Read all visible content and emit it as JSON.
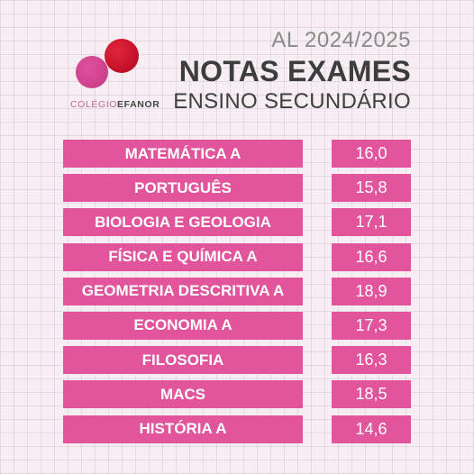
{
  "logo": {
    "text_light": "COLÉGIO",
    "text_dark": "EFANOR"
  },
  "header": {
    "year": "AL 2024/2025",
    "title": "NOTAS EXAMES",
    "subtitle": "ENSINO SECUNDÁRIO"
  },
  "grades": [
    {
      "subject": "MATEMÁTICA A",
      "value": "16,0"
    },
    {
      "subject": "PORTUGUÊS",
      "value": "15,8"
    },
    {
      "subject": "BIOLOGIA E GEOLOGIA",
      "value": "17,1"
    },
    {
      "subject": "FÍSICA E QUÍMICA A",
      "value": "16,6"
    },
    {
      "subject": "GEOMETRIA DESCRITIVA A",
      "value": "18,9"
    },
    {
      "subject": "ECONOMIA A",
      "value": "17,3"
    },
    {
      "subject": "FILOSOFIA",
      "value": "16,3"
    },
    {
      "subject": "MACS",
      "value": "18,5"
    },
    {
      "subject": "HISTÓRIA A",
      "value": "14,6"
    }
  ],
  "colors": {
    "accent_pink": "#e2549c",
    "logo_red": "#c3102a",
    "logo_pink": "#cc3f8a"
  }
}
